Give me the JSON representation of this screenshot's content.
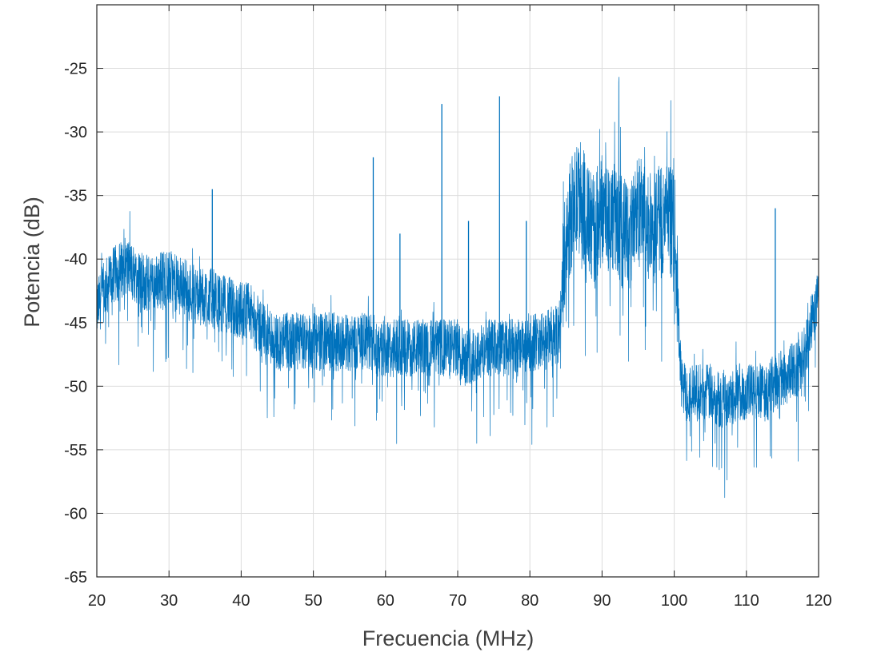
{
  "chart_data": {
    "type": "line",
    "title": "",
    "xlabel": "Frecuencia (MHz)",
    "ylabel": "Potencia (dB)",
    "xlim": [
      20,
      120
    ],
    "ylim": [
      -65,
      -20
    ],
    "xticks": [
      "20",
      "30",
      "40",
      "50",
      "60",
      "70",
      "80",
      "90",
      "100",
      "110",
      "120"
    ],
    "yticks": [
      "-25",
      "-30",
      "-35",
      "-40",
      "-45",
      "-50",
      "-55",
      "-60",
      "-65"
    ],
    "grid": true,
    "line_color": "#0072BD",
    "series": [
      {
        "x": [
          20,
          21,
          22,
          23,
          24,
          25,
          26,
          27,
          28,
          29,
          30,
          31,
          32,
          33,
          34,
          35,
          36,
          37,
          38,
          39,
          40,
          41,
          42,
          43,
          44,
          45,
          46,
          47,
          48,
          49,
          50,
          51,
          52,
          53,
          54,
          55,
          56,
          57,
          58,
          59,
          60,
          61,
          62,
          63,
          64,
          65,
          66,
          67,
          68,
          69,
          70,
          71,
          72,
          73,
          74,
          75,
          76,
          77,
          78,
          79,
          80,
          81,
          82,
          83,
          84,
          85,
          86,
          87,
          88,
          89,
          90,
          91,
          92,
          93,
          94,
          95,
          96,
          97,
          98,
          99,
          100,
          101,
          102,
          103,
          104,
          105,
          106,
          107,
          108,
          109,
          110,
          111,
          112,
          113,
          114,
          115,
          116,
          117,
          118,
          119,
          120
        ],
        "values": [
          -44,
          -42.5,
          -41.5,
          -41,
          -40.5,
          -41,
          -41.5,
          -42,
          -42,
          -41.5,
          -41.5,
          -42,
          -42,
          -42.5,
          -43,
          -43,
          -43,
          -43.5,
          -43.5,
          -44,
          -44,
          -44,
          -45,
          -45.5,
          -46,
          -46.5,
          -46.5,
          -46.5,
          -46.5,
          -46.5,
          -46.5,
          -46.5,
          -46.5,
          -46.5,
          -46.5,
          -46.5,
          -46.5,
          -46.5,
          -46.5,
          -47,
          -47,
          -47,
          -47,
          -47,
          -47,
          -47,
          -47,
          -47,
          -47,
          -47,
          -47,
          -47.5,
          -47.5,
          -47.5,
          -47,
          -47,
          -47,
          -47,
          -47,
          -47,
          -46.5,
          -46.5,
          -46.5,
          -46,
          -46,
          -38,
          -36,
          -35,
          -37,
          -38,
          -36,
          -36.5,
          -37,
          -38,
          -38,
          -36,
          -37,
          -38,
          -37,
          -37,
          -37,
          -50,
          -50.5,
          -50.5,
          -50.5,
          -50.5,
          -51,
          -51,
          -50.5,
          -50.5,
          -50.5,
          -50.5,
          -50.5,
          -50.5,
          -49.5,
          -49.5,
          -49,
          -48.5,
          -47.5,
          -45,
          -43
        ]
      }
    ],
    "spikes": [
      {
        "x": 36,
        "y": -34.5
      },
      {
        "x": 58.3,
        "y": -32
      },
      {
        "x": 62,
        "y": -38
      },
      {
        "x": 67.8,
        "y": -27.8
      },
      {
        "x": 71.5,
        "y": -37
      },
      {
        "x": 75.8,
        "y": -27.2
      },
      {
        "x": 79.5,
        "y": -37
      },
      {
        "x": 114,
        "y": -36
      }
    ]
  }
}
